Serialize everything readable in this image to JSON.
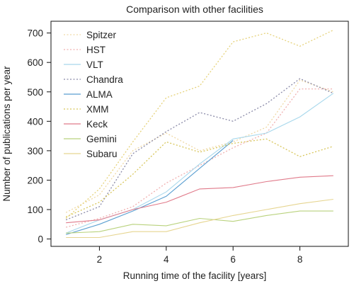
{
  "chart_data": {
    "type": "line",
    "title": "Comparison with other facilities",
    "xlabel": "Running time of the facility [years]",
    "ylabel": "Number of publications per year",
    "xlim": [
      0.55,
      9.45
    ],
    "ylim": [
      -25,
      740
    ],
    "xticks": [
      2,
      4,
      6,
      8
    ],
    "yticks": [
      0,
      100,
      200,
      300,
      400,
      500,
      600,
      700
    ],
    "grid": false,
    "legend_position": "top-left",
    "series": [
      {
        "name": "Spitzer",
        "color": "#f0d9a6",
        "dash": "dotted",
        "x": [
          1,
          2,
          3,
          4,
          5,
          6,
          7,
          8,
          9
        ],
        "y": [
          90,
          150,
          300,
          360,
          300,
          330,
          380,
          540,
          500
        ]
      },
      {
        "name": "HST",
        "color": "#f0b0b0",
        "dash": "dotted",
        "x": [
          1,
          2,
          3,
          4,
          5,
          6,
          7,
          8,
          9
        ],
        "y": [
          40,
          70,
          110,
          190,
          250,
          310,
          360,
          510,
          510
        ]
      },
      {
        "name": "VLT",
        "color": "#a8d8ec",
        "dash": "solid",
        "x": [
          1,
          2,
          3,
          4,
          5,
          6,
          7,
          8,
          9
        ],
        "y": [
          20,
          65,
          100,
          160,
          255,
          340,
          360,
          415,
          495
        ]
      },
      {
        "name": "Chandra",
        "color": "#8a8aa8",
        "dash": "dotted",
        "x": [
          1,
          2,
          3,
          4,
          5,
          6,
          7,
          8,
          9
        ],
        "y": [
          65,
          110,
          290,
          365,
          430,
          400,
          460,
          545,
          495
        ]
      },
      {
        "name": "ALMA",
        "color": "#5b9fd1",
        "dash": "solid",
        "x": [
          1,
          2,
          3,
          4,
          5,
          6
        ],
        "y": [
          15,
          50,
          95,
          145,
          240,
          335
        ]
      },
      {
        "name": "XMM",
        "color": "#d8c65a",
        "dash": "dotted",
        "x": [
          1,
          2,
          3,
          4,
          5,
          6,
          7,
          8,
          9
        ],
        "y": [
          75,
          125,
          220,
          330,
          295,
          325,
          340,
          280,
          315
        ]
      },
      {
        "name": "Keck",
        "color": "#e07a8a",
        "dash": "solid",
        "x": [
          1,
          2,
          3,
          4,
          5,
          6,
          7,
          8,
          9
        ],
        "y": [
          55,
          65,
          100,
          125,
          170,
          175,
          195,
          210,
          215
        ]
      },
      {
        "name": "Gemini",
        "color": "#b9d27d",
        "dash": "solid",
        "x": [
          1,
          2,
          3,
          4,
          5,
          6,
          7,
          8,
          9
        ],
        "y": [
          20,
          25,
          50,
          45,
          70,
          60,
          80,
          95,
          95
        ]
      },
      {
        "name": "Subaru",
        "color": "#e6d590",
        "dash": "solid",
        "x": [
          1,
          2,
          3,
          4,
          5,
          6,
          7,
          8,
          9
        ],
        "y": [
          5,
          5,
          25,
          25,
          55,
          80,
          100,
          120,
          135
        ]
      }
    ],
    "dotted_extra": {
      "name": "",
      "color": "#e6d27a",
      "x": [
        1,
        2,
        3,
        4,
        5,
        6,
        7,
        8,
        9
      ],
      "y": [
        70,
        170,
        330,
        480,
        520,
        670,
        700,
        655,
        710
      ]
    }
  }
}
